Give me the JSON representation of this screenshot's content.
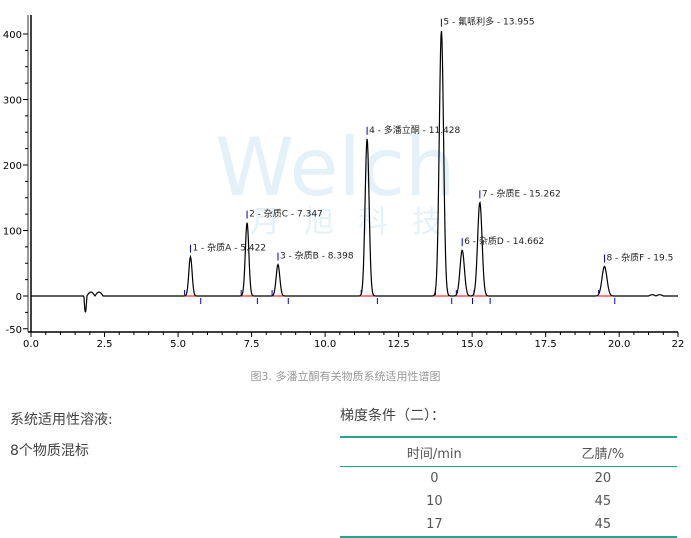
{
  "chart_data": {
    "type": "line",
    "title": "",
    "xlabel": "",
    "ylabel": "",
    "xlim": [
      0,
      22
    ],
    "ylim": [
      -50,
      420
    ],
    "xticks": [
      "0.0",
      "2.5",
      "5.0",
      "7.5",
      "10.0",
      "12.5",
      "15.0",
      "17.5",
      "20.0",
      "22"
    ],
    "yticks": [
      "400",
      "300",
      "200",
      "100",
      "0",
      "-50"
    ],
    "grid": false,
    "peaks": [
      {
        "rt": 5.422,
        "height": 60,
        "label": "1 - 杂质A - 5.422"
      },
      {
        "rt": 7.347,
        "height": 112,
        "label": "2 - 杂质C - 7.347"
      },
      {
        "rt": 8.398,
        "height": 48,
        "label": "3 - 杂质B - 8.398"
      },
      {
        "rt": 11.428,
        "height": 240,
        "label": "4 - 多潘立酮 - 11.428"
      },
      {
        "rt": 13.955,
        "height": 405,
        "label": "5 - 氟哌利多 - 13.955"
      },
      {
        "rt": 14.662,
        "height": 70,
        "label": "6 - 杂质D - 14.662"
      },
      {
        "rt": 15.262,
        "height": 143,
        "label": "7 - 杂质E - 15.262"
      },
      {
        "rt": 19.5,
        "height": 45,
        "label": "8 - 杂质F - 19.5"
      }
    ],
    "line_color": "#000000",
    "baseline_color": "#ff0000",
    "marker_color": "#0000cc"
  },
  "watermark": {
    "text": "Welch",
    "subtext": "月 旭 科 技"
  },
  "caption": "图3. 多潘立酮有关物质系统适用性谱图",
  "solution": {
    "title": "系统适用性溶液:",
    "value": "8个物质混标"
  },
  "gradient": {
    "title": "梯度条件（二）：",
    "headers": [
      "时间/min",
      "乙腈/%"
    ],
    "rows": [
      [
        "0",
        "20"
      ],
      [
        "10",
        "45"
      ],
      [
        "17",
        "45"
      ]
    ],
    "accent": "#26a48e"
  }
}
